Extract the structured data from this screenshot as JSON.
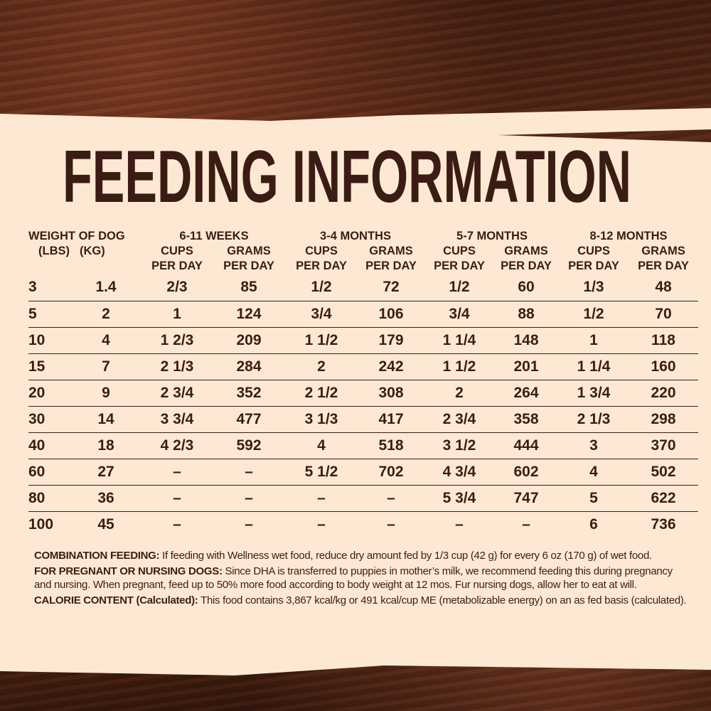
{
  "title": "FEEDING INFORMATION",
  "header": {
    "weight": "WEIGHT OF DOG",
    "lbs": "(LBS)",
    "kg": "(KG)",
    "groups": [
      "6-11 WEEKS",
      "3-4 MONTHS",
      "5-7 MONTHS",
      "8-12 MONTHS"
    ],
    "cups": "CUPS",
    "grams": "GRAMS",
    "per_day": "PER DAY"
  },
  "rows": [
    [
      "3",
      "1.4",
      "2/3",
      "85",
      "1/2",
      "72",
      "1/2",
      "60",
      "1/3",
      "48"
    ],
    [
      "5",
      "2",
      "1",
      "124",
      "3/4",
      "106",
      "3/4",
      "88",
      "1/2",
      "70"
    ],
    [
      "10",
      "4",
      "1 2/3",
      "209",
      "1 1/2",
      "179",
      "1 1/4",
      "148",
      "1",
      "118"
    ],
    [
      "15",
      "7",
      "2 1/3",
      "284",
      "2",
      "242",
      "1 1/2",
      "201",
      "1 1/4",
      "160"
    ],
    [
      "20",
      "9",
      "2 3/4",
      "352",
      "2 1/2",
      "308",
      "2",
      "264",
      "1 3/4",
      "220"
    ],
    [
      "30",
      "14",
      "3 3/4",
      "477",
      "3 1/3",
      "417",
      "2 3/4",
      "358",
      "2 1/3",
      "298"
    ],
    [
      "40",
      "18",
      "4 2/3",
      "592",
      "4",
      "518",
      "3 1/2",
      "444",
      "3",
      "370"
    ],
    [
      "60",
      "27",
      "–",
      "–",
      "5 1/2",
      "702",
      "4 3/4",
      "602",
      "4",
      "502"
    ],
    [
      "80",
      "36",
      "–",
      "–",
      "–",
      "–",
      "5 3/4",
      "747",
      "5",
      "622"
    ],
    [
      "100",
      "45",
      "–",
      "–",
      "–",
      "–",
      "–",
      "–",
      "6",
      "736"
    ]
  ],
  "notes": [
    {
      "label": "COMBINATION FEEDING:",
      "text": " If feeding with Wellness wet food, reduce dry amount fed by 1/3 cup (42 g) for every 6 oz (170 g) of wet food."
    },
    {
      "label": "FOR PREGNANT OR NURSING DOGS:",
      "text": " Since DHA is transferred to puppies in mother’s milk, we recommend feeding this during pregnancy and nursing. When pregnant, feed up to 50% more food according to body weight at 12 mos. Fur nursing dogs, allow her to eat at will."
    },
    {
      "label": "CALORIE CONTENT (Calculated):",
      "text": " This food contains 3,867 kcal/kg or 491 kcal/cup ME (metabolizable energy) on an as fed basis (calculated)."
    }
  ],
  "colors": {
    "text": "#3b1c14",
    "panel": "#fde9d3",
    "wood": "#4e2414"
  }
}
